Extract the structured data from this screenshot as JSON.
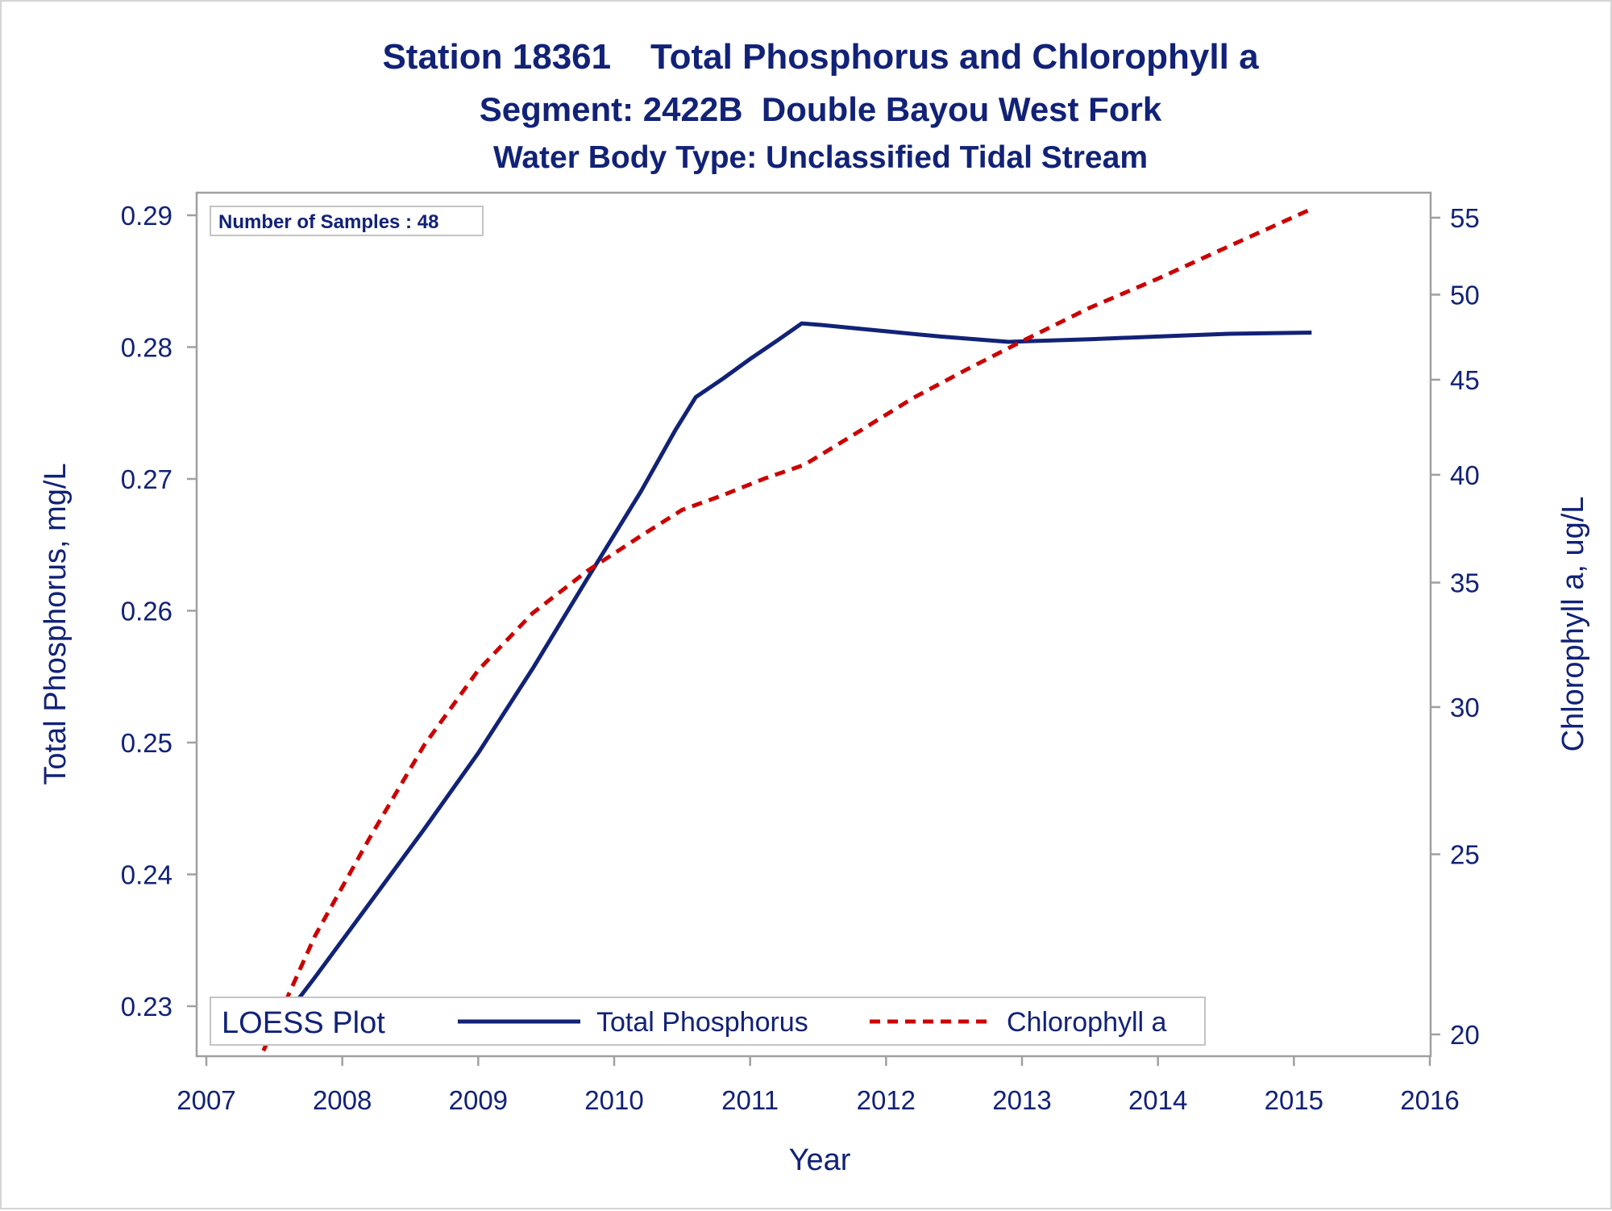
{
  "title": {
    "line1": "Station 18361    Total Phosphorus and Chlorophyll a",
    "line2": "Segment: 2422B  Double Bayou West Fork",
    "line3": "Water Body Type: Unclassified Tidal Stream"
  },
  "inset_label": "Number of Samples : 48",
  "legend": {
    "title": "LOESS Plot",
    "items": [
      {
        "label": "Total Phosphorus",
        "color": "#112277",
        "style": "solid"
      },
      {
        "label": "Chlorophyll a",
        "color": "#cc0000",
        "style": "dashed"
      }
    ]
  },
  "chart_data": {
    "type": "line",
    "xlabel": "Year",
    "ylabel_left": "Total Phosphorus, mg/L",
    "ylabel_right": "Chlorophyll a, ug/L",
    "x_ticks": [
      "2007",
      "2008",
      "2009",
      "2010",
      "2011",
      "2012",
      "2013",
      "2014",
      "2015",
      "2016"
    ],
    "y_left_ticks": [
      "0.23",
      "0.24",
      "0.25",
      "0.26",
      "0.27",
      "0.28",
      "0.29"
    ],
    "y_right_ticks": [
      "20",
      "25",
      "30",
      "35",
      "40",
      "45",
      "50",
      "55"
    ],
    "xlim": [
      2007,
      2016
    ],
    "ylim_left": [
      0.2272,
      0.2918
    ],
    "ylim_right": [
      19.6,
      56.5
    ],
    "y_right_scale": "log",
    "legend_position": "bottom-left, inside",
    "grid": false,
    "series": [
      {
        "name": "Total Phosphorus",
        "axis": "left",
        "color": "#112277",
        "dash": "solid",
        "x": [
          2007.43,
          2007.8,
          2008.2,
          2008.6,
          2009.0,
          2009.4,
          2009.8,
          2010.2,
          2010.45,
          2010.6,
          2010.8,
          2011.0,
          2011.2,
          2011.38,
          2011.5,
          2011.8,
          2012.0,
          2012.4,
          2012.9,
          2013.5,
          2014.0,
          2014.5,
          2015.13
        ],
        "y": [
          0.2272,
          0.2322,
          0.2378,
          0.2434,
          0.2492,
          0.2556,
          0.2624,
          0.2691,
          0.2737,
          0.2762,
          0.2776,
          0.2791,
          0.2805,
          0.2818,
          0.2817,
          0.2814,
          0.2812,
          0.2808,
          0.2804,
          0.2806,
          0.2808,
          0.281,
          0.2811
        ]
      },
      {
        "name": "Chlorophyll a",
        "axis": "right",
        "color": "#cc0000",
        "dash": "dashed",
        "x": [
          2007.42,
          2007.8,
          2008.2,
          2008.6,
          2009.0,
          2009.4,
          2009.8,
          2010.2,
          2010.5,
          2010.8,
          2011.1,
          2011.4,
          2011.8,
          2012.2,
          2012.6,
          2013.0,
          2013.5,
          2014.0,
          2014.5,
          2015.13
        ],
        "y": [
          19.6,
          22.6,
          25.5,
          28.6,
          31.4,
          33.7,
          35.5,
          37.1,
          38.3,
          39.0,
          39.8,
          40.5,
          42.2,
          44.0,
          45.6,
          47.2,
          49.2,
          51.0,
          53.0,
          55.6
        ]
      }
    ]
  }
}
